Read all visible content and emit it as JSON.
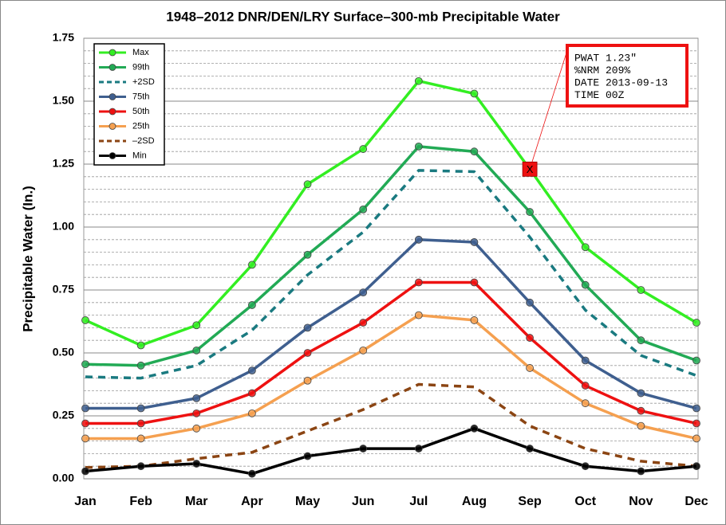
{
  "chart_data": {
    "type": "line",
    "title": "1948–2012 DNR/DEN/LRY Surface–300-mb Precipitable Water",
    "y_label": "Precipitable Water (In.)",
    "categories": [
      "Jan",
      "Feb",
      "Mar",
      "Apr",
      "May",
      "Jun",
      "Jul",
      "Aug",
      "Sep",
      "Oct",
      "Nov",
      "Dec"
    ],
    "ylim": [
      0,
      1.75
    ],
    "yticks": [
      {
        "value": 0,
        "label": "0.00"
      },
      {
        "value": 0.25,
        "label": "0.25"
      },
      {
        "value": 0.5,
        "label": "0.50"
      },
      {
        "value": 0.75,
        "label": "0.75"
      },
      {
        "value": 1,
        "label": "1.00"
      },
      {
        "value": 1.25,
        "label": "1.25"
      },
      {
        "value": 1.5,
        "label": "1.50"
      },
      {
        "value": 1.75,
        "label": "1.75"
      }
    ],
    "minor_yticks": [
      0.05,
      0.1,
      0.15,
      0.2,
      0.3,
      0.35,
      0.4,
      0.45,
      0.55,
      0.6,
      0.65,
      0.7,
      0.8,
      0.85,
      0.9,
      0.95,
      1.05,
      1.1,
      1.15,
      1.2,
      1.3,
      1.35,
      1.4,
      1.45,
      1.55,
      1.6,
      1.65,
      1.7
    ],
    "grid": true,
    "legend": "top-left",
    "series": [
      {
        "name": "Max",
        "color": "#33ee22",
        "dashed": false,
        "markers": true,
        "values": [
          0.63,
          0.53,
          0.61,
          0.85,
          1.17,
          1.31,
          1.58,
          1.53,
          1.23,
          0.92,
          0.75,
          0.62
        ]
      },
      {
        "name": "99th",
        "color": "#22aa55",
        "dashed": false,
        "markers": true,
        "values": [
          0.455,
          0.45,
          0.51,
          0.69,
          0.89,
          1.07,
          1.32,
          1.3,
          1.06,
          0.77,
          0.55,
          0.47
        ]
      },
      {
        "name": "+2SD",
        "color": "#1a7a80",
        "dashed": true,
        "markers": false,
        "values": [
          0.405,
          0.4,
          0.45,
          0.59,
          0.81,
          0.98,
          1.225,
          1.22,
          0.96,
          0.67,
          0.49,
          0.41
        ]
      },
      {
        "name": "75th",
        "color": "#3f5f8f",
        "dashed": false,
        "markers": true,
        "values": [
          0.28,
          0.28,
          0.32,
          0.43,
          0.6,
          0.74,
          0.95,
          0.94,
          0.7,
          0.47,
          0.34,
          0.28
        ]
      },
      {
        "name": "50th",
        "color": "#ee1111",
        "dashed": false,
        "markers": true,
        "values": [
          0.22,
          0.22,
          0.26,
          0.34,
          0.5,
          0.62,
          0.78,
          0.78,
          0.56,
          0.37,
          0.27,
          0.22
        ]
      },
      {
        "name": "25th",
        "color": "#f5a050",
        "dashed": false,
        "markers": true,
        "values": [
          0.16,
          0.16,
          0.2,
          0.26,
          0.39,
          0.51,
          0.65,
          0.63,
          0.44,
          0.3,
          0.21,
          0.16
        ]
      },
      {
        "name": "–2SD",
        "color": "#8b4513",
        "dashed": true,
        "markers": false,
        "values": [
          0.045,
          0.05,
          0.08,
          0.105,
          0.19,
          0.275,
          0.375,
          0.365,
          0.21,
          0.12,
          0.07,
          0.05
        ]
      },
      {
        "name": "Min",
        "color": "#000000",
        "dashed": false,
        "markers": true,
        "values": [
          0.03,
          0.05,
          0.06,
          0.02,
          0.09,
          0.12,
          0.12,
          0.2,
          0.12,
          0.05,
          0.03,
          0.05
        ]
      }
    ],
    "annotation": {
      "category": "Sep",
      "value": 1.23,
      "marker_label": "X",
      "color": "#ee1111",
      "lines": [
        "PWAT 1.23\"",
        "%NRM 209%",
        "DATE 2013-09-13",
        "TIME 00Z"
      ]
    }
  }
}
